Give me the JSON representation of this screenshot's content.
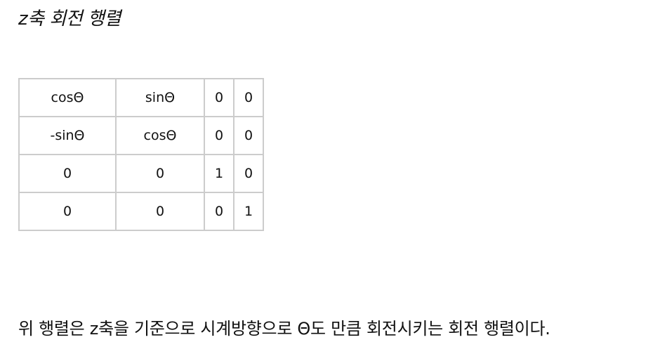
{
  "heading": "z축 회전 행렬",
  "matrix": {
    "rows": [
      [
        "cosΘ",
        "sinΘ",
        "0",
        "0"
      ],
      [
        "-sinΘ",
        "cosΘ",
        "0",
        "0"
      ],
      [
        "0",
        "0",
        "1",
        "0"
      ],
      [
        "0",
        "0",
        "0",
        "1"
      ]
    ]
  },
  "caption": "위 행렬은 z축을 기준으로 시계방향으로 Θ도 만큼 회전시키는 회전 행렬이다."
}
